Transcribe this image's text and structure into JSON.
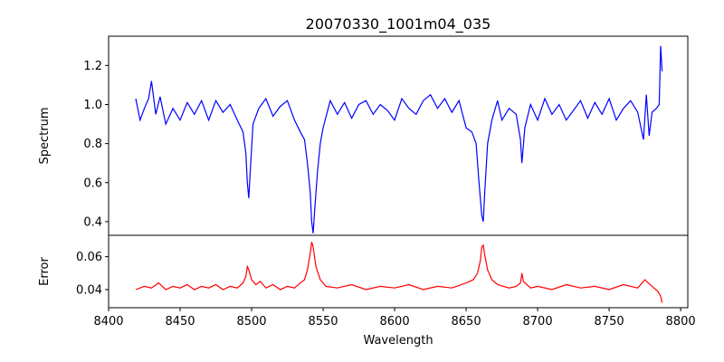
{
  "chart_data": {
    "type": "line",
    "title": "20070330_1001m04_035",
    "xlabel": "Wavelength",
    "xlim": [
      8400,
      8805
    ],
    "xticks": [
      8400,
      8450,
      8500,
      8550,
      8600,
      8650,
      8700,
      8750,
      8800
    ],
    "grid": false,
    "panels": [
      {
        "name": "spectrum",
        "ylabel": "Spectrum",
        "ylim": [
          0.33,
          1.35
        ],
        "yticks": [
          0.4,
          0.6,
          0.8,
          1.0,
          1.2
        ],
        "ytick_labels": [
          "0.4",
          "0.6",
          "0.8",
          "1.0",
          "1.2"
        ],
        "series": [
          {
            "color": "#0000ff",
            "x": [
              8419,
              8422,
              8425,
              8428,
              8430,
              8433,
              8436,
              8440,
              8445,
              8450,
              8455,
              8460,
              8465,
              8470,
              8475,
              8480,
              8485,
              8490,
              8494,
              8496,
              8497,
              8498,
              8499,
              8501,
              8505,
              8510,
              8515,
              8520,
              8525,
              8530,
              8534,
              8537,
              8539,
              8541,
              8542,
              8543,
              8544,
              8546,
              8548,
              8550,
              8555,
              8560,
              8565,
              8570,
              8575,
              8580,
              8585,
              8590,
              8595,
              8600,
              8605,
              8610,
              8615,
              8620,
              8625,
              8630,
              8635,
              8640,
              8645,
              8650,
              8654,
              8657,
              8659,
              8661,
              8662,
              8663,
              8665,
              8668,
              8672,
              8675,
              8680,
              8685,
              8688,
              8689,
              8691,
              8695,
              8700,
              8705,
              8710,
              8715,
              8720,
              8725,
              8730,
              8735,
              8740,
              8745,
              8750,
              8755,
              8760,
              8765,
              8770,
              8774,
              8776,
              8778,
              8780,
              8783,
              8785,
              8786,
              8787
            ],
            "y": [
              1.03,
              0.92,
              0.98,
              1.03,
              1.12,
              0.95,
              1.04,
              0.9,
              0.98,
              0.92,
              1.01,
              0.95,
              1.02,
              0.92,
              1.02,
              0.96,
              1.0,
              0.92,
              0.86,
              0.75,
              0.6,
              0.52,
              0.65,
              0.9,
              0.98,
              1.03,
              0.94,
              0.99,
              1.02,
              0.92,
              0.86,
              0.82,
              0.7,
              0.55,
              0.4,
              0.34,
              0.45,
              0.65,
              0.8,
              0.88,
              1.02,
              0.95,
              1.01,
              0.93,
              1.0,
              1.02,
              0.95,
              1.0,
              0.97,
              0.92,
              1.03,
              0.98,
              0.95,
              1.02,
              1.05,
              0.98,
              1.03,
              0.96,
              1.02,
              0.88,
              0.86,
              0.8,
              0.6,
              0.43,
              0.4,
              0.55,
              0.8,
              0.92,
              1.02,
              0.92,
              0.98,
              0.95,
              0.82,
              0.7,
              0.88,
              1.0,
              0.92,
              1.03,
              0.95,
              1.0,
              0.92,
              0.97,
              1.02,
              0.93,
              1.01,
              0.95,
              1.03,
              0.92,
              0.98,
              1.02,
              0.96,
              0.82,
              1.05,
              0.84,
              0.96,
              0.98,
              1.0,
              1.3,
              1.17
            ]
          }
        ]
      },
      {
        "name": "error",
        "ylabel": "Error",
        "ylim": [
          0.029,
          0.073
        ],
        "yticks": [
          0.04,
          0.06
        ],
        "ytick_labels": [
          "0.04",
          "0.06"
        ],
        "series": [
          {
            "color": "#ff0000",
            "x": [
              8419,
              8425,
              8430,
              8435,
              8440,
              8445,
              8450,
              8455,
              8460,
              8465,
              8470,
              8475,
              8480,
              8485,
              8490,
              8494,
              8496,
              8497,
              8498,
              8500,
              8503,
              8506,
              8510,
              8515,
              8520,
              8525,
              8530,
              8534,
              8537,
              8539,
              8541,
              8542,
              8543,
              8545,
              8548,
              8552,
              8560,
              8570,
              8580,
              8590,
              8600,
              8610,
              8620,
              8630,
              8640,
              8650,
              8655,
              8658,
              8660,
              8661,
              8662,
              8663,
              8665,
              8668,
              8672,
              8680,
              8685,
              8688,
              8689,
              8690,
              8695,
              8700,
              8710,
              8720,
              8730,
              8740,
              8750,
              8760,
              8770,
              8775,
              8780,
              8784,
              8786,
              8787
            ],
            "y": [
              0.04,
              0.042,
              0.041,
              0.044,
              0.04,
              0.042,
              0.041,
              0.043,
              0.04,
              0.042,
              0.041,
              0.043,
              0.04,
              0.042,
              0.041,
              0.044,
              0.048,
              0.054,
              0.052,
              0.046,
              0.043,
              0.045,
              0.041,
              0.043,
              0.04,
              0.042,
              0.041,
              0.044,
              0.046,
              0.052,
              0.062,
              0.069,
              0.066,
              0.054,
              0.046,
              0.042,
              0.041,
              0.043,
              0.04,
              0.042,
              0.041,
              0.043,
              0.04,
              0.042,
              0.041,
              0.044,
              0.046,
              0.05,
              0.058,
              0.066,
              0.067,
              0.061,
              0.052,
              0.046,
              0.043,
              0.041,
              0.042,
              0.044,
              0.05,
              0.045,
              0.041,
              0.042,
              0.04,
              0.043,
              0.041,
              0.042,
              0.04,
              0.043,
              0.041,
              0.046,
              0.042,
              0.039,
              0.036,
              0.032
            ]
          }
        ]
      }
    ]
  }
}
